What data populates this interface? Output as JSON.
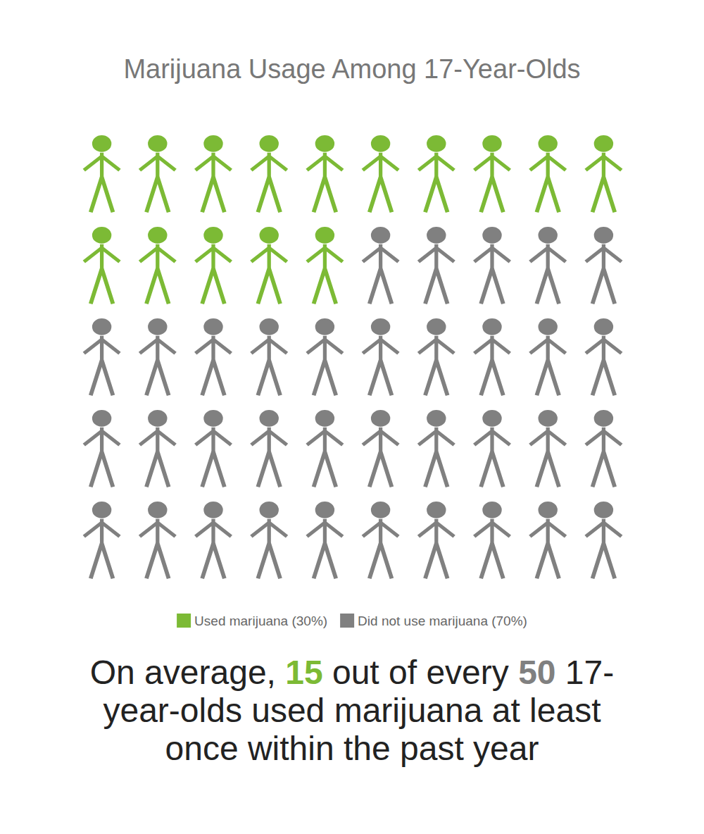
{
  "chart_data": {
    "type": "pictogram",
    "title": "Marijuana Usage Among 17-Year-Olds",
    "series": [
      {
        "name": "Used marijuana (30%)",
        "color": "#7cba35",
        "values": [
          15
        ]
      },
      {
        "name": "Did not use marijuana (70%)",
        "color": "#808080",
        "values": [
          35
        ]
      }
    ],
    "legend": "bottom",
    "tick_labels": false,
    "annotation": [
      "On average, ",
      "15",
      " out of every ",
      "50",
      " 17-year-olds used marijuana at least once within the past year"
    ]
  }
}
